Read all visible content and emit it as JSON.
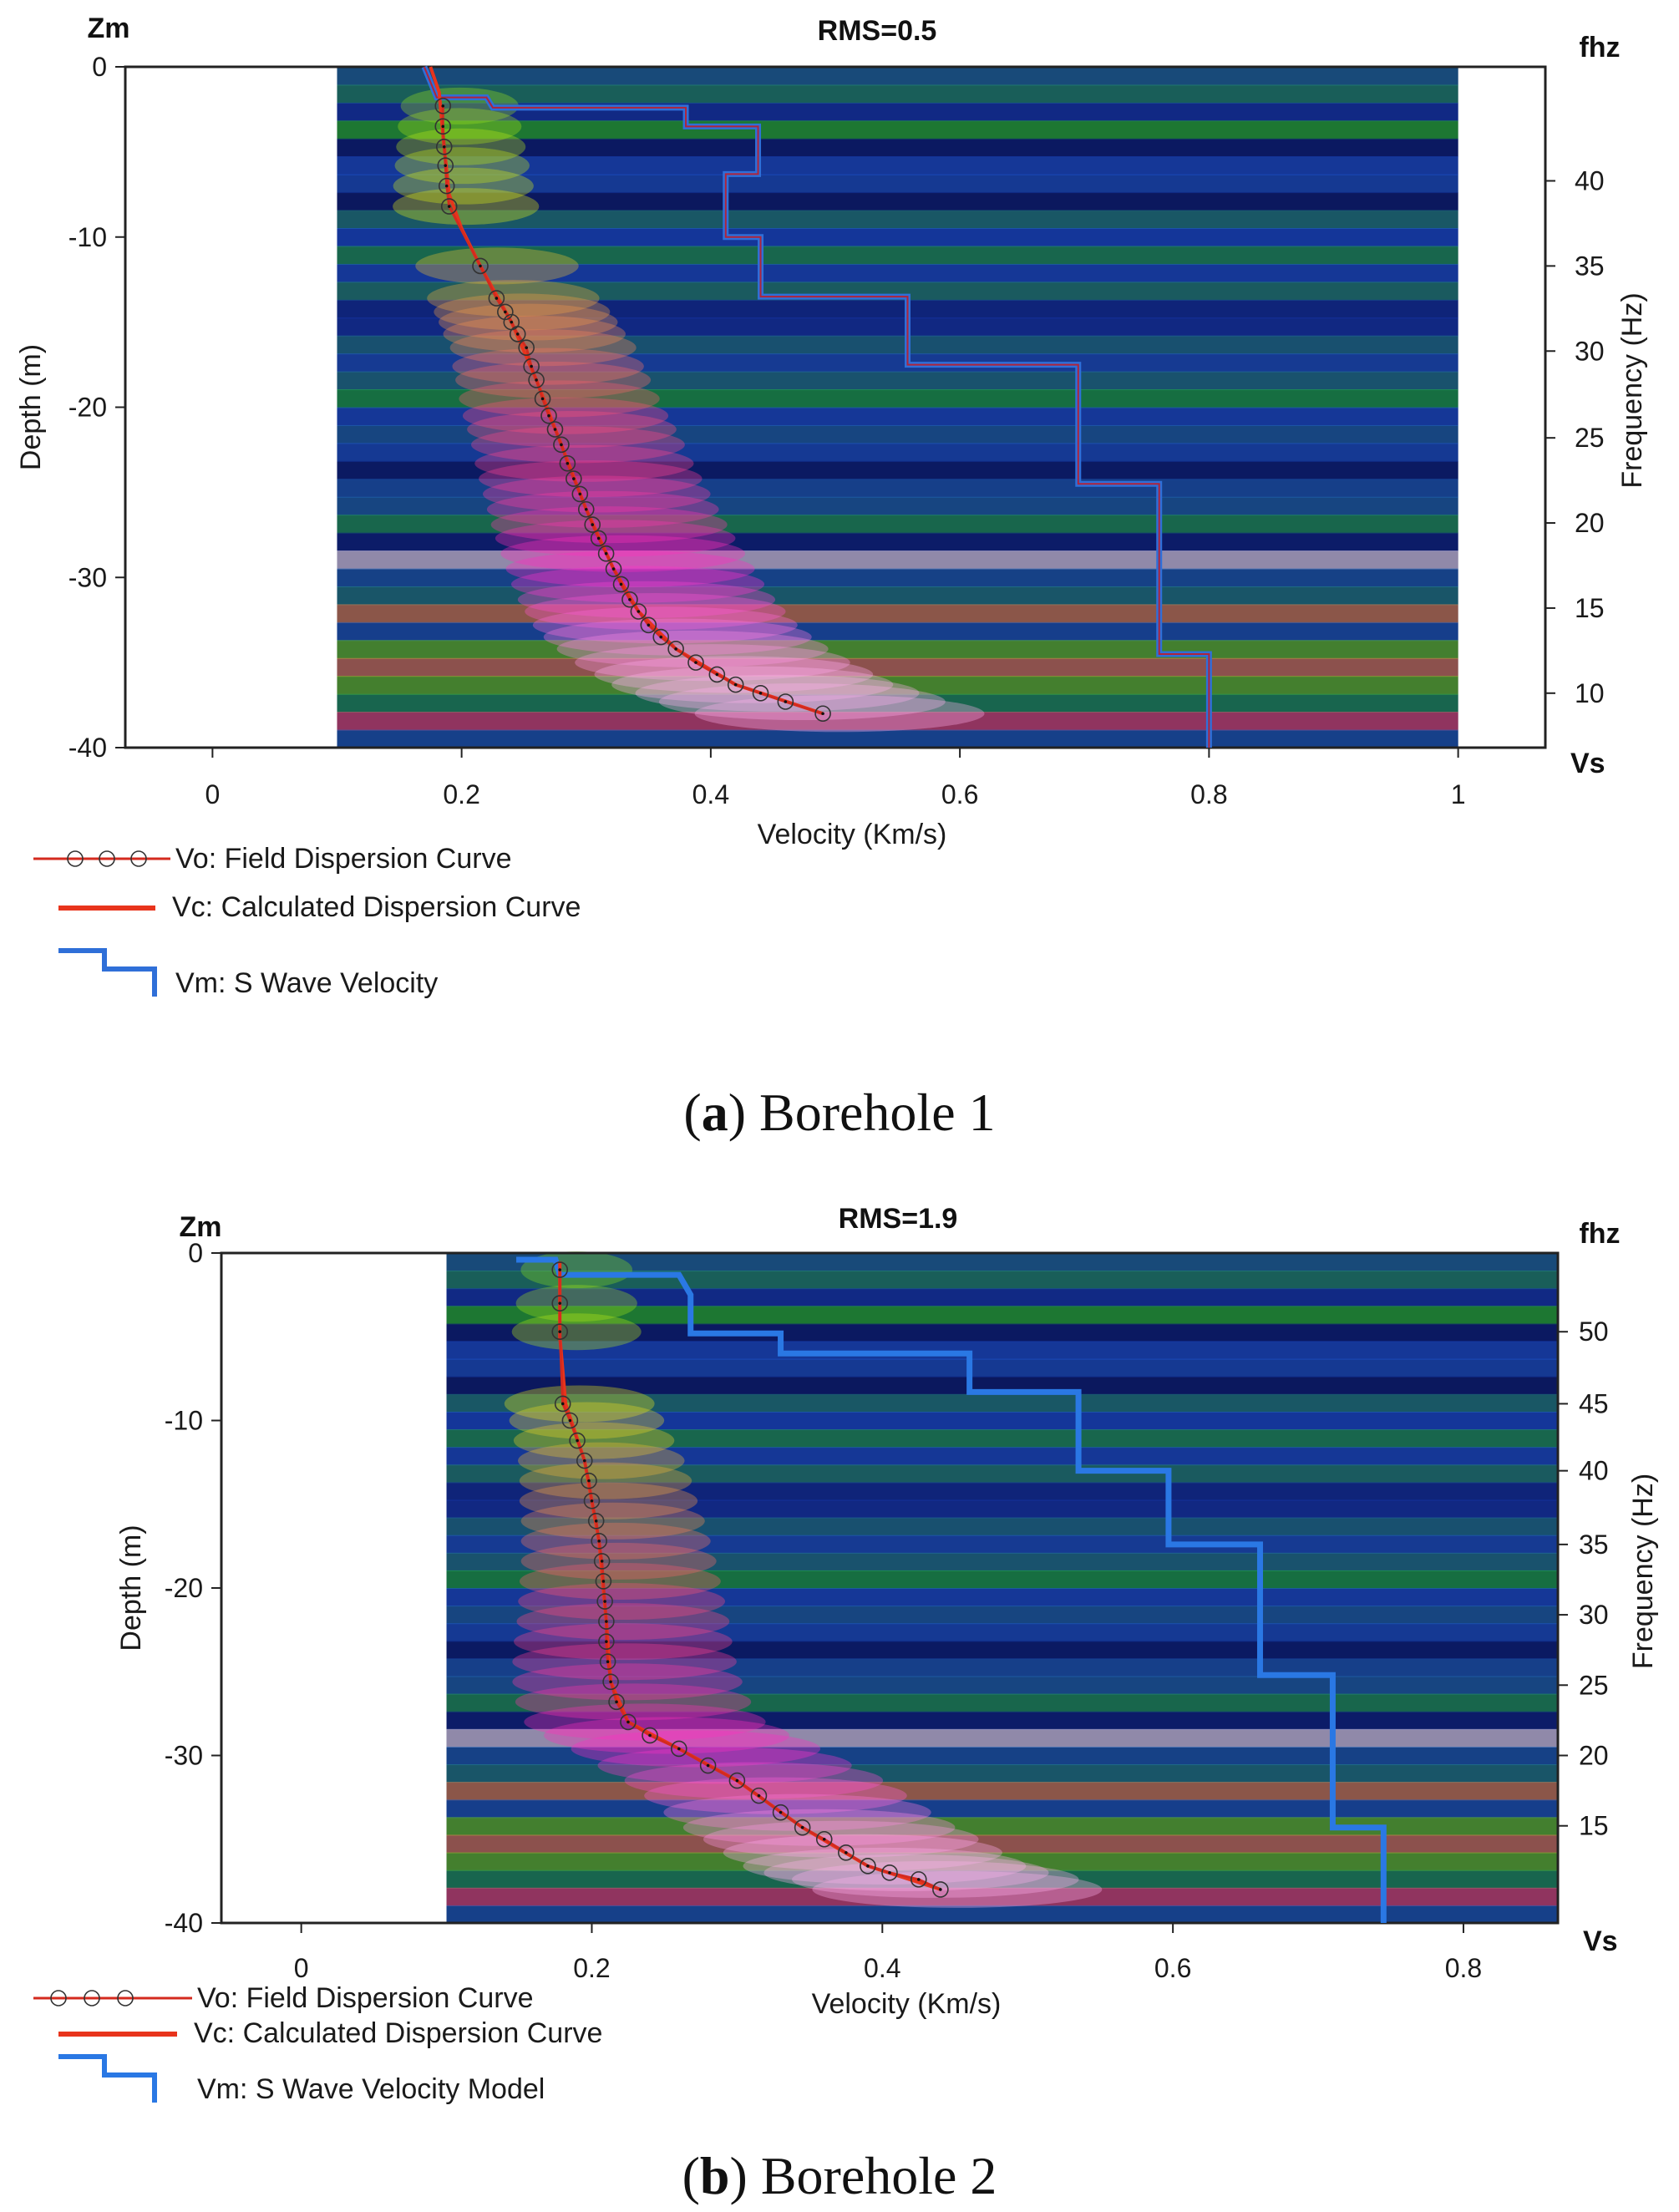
{
  "captions": {
    "a_letter": "a",
    "a_text": " Borehole 1",
    "b_letter": "b",
    "b_text": " Borehole 2"
  },
  "chart_data": [
    {
      "type": "line",
      "panel": "a",
      "title": "RMS=0.5",
      "xlabel": "Velocity (Km/s)",
      "ylabel": "Depth (m)",
      "y2label": "Frequency (Hz)",
      "corner_y": "Zm",
      "corner_y2": "fhz",
      "corner_x": "Vs",
      "xlim": [
        -0.07,
        1.07
      ],
      "ylim": [
        -40,
        0
      ],
      "data_x_range": [
        0.1,
        1.0
      ],
      "x_ticks": [
        0,
        0.2,
        0.4,
        0.6,
        0.8,
        1
      ],
      "x_tick_labels": [
        "0",
        "0.2",
        "0.4",
        "0.6",
        "0.8",
        "1"
      ],
      "y_ticks": [
        0,
        -10,
        -20,
        -30,
        -40
      ],
      "y_tick_labels": [
        "0",
        "-10",
        "-20",
        "-30",
        "-40"
      ],
      "freq_ticks": [
        {
          "freq": 40,
          "depth": -6.7
        },
        {
          "freq": 35,
          "depth": -11.7
        },
        {
          "freq": 30,
          "depth": -16.7
        },
        {
          "freq": 25,
          "depth": -21.8
        },
        {
          "freq": 20,
          "depth": -26.8
        },
        {
          "freq": 15,
          "depth": -31.8
        },
        {
          "freq": 10,
          "depth": -36.8
        }
      ],
      "freq_tick_labels": [
        "40",
        "35",
        "30",
        "25",
        "20",
        "15",
        "10"
      ],
      "series": [
        {
          "name": "Vo: Field Dispersion Curve",
          "color": "#d42a1e",
          "points": [
            [
              0.185,
              -2.3
            ],
            [
              0.185,
              -3.5
            ],
            [
              0.186,
              -4.7
            ],
            [
              0.187,
              -5.8
            ],
            [
              0.188,
              -7.0
            ],
            [
              0.19,
              -8.2
            ],
            [
              0.215,
              -11.7
            ],
            [
              0.228,
              -13.6
            ],
            [
              0.235,
              -14.4
            ],
            [
              0.24,
              -15.0
            ],
            [
              0.245,
              -15.7
            ],
            [
              0.252,
              -16.5
            ],
            [
              0.256,
              -17.6
            ],
            [
              0.26,
              -18.4
            ],
            [
              0.265,
              -19.5
            ],
            [
              0.27,
              -20.5
            ],
            [
              0.275,
              -21.3
            ],
            [
              0.28,
              -22.2
            ],
            [
              0.285,
              -23.3
            ],
            [
              0.29,
              -24.2
            ],
            [
              0.295,
              -25.1
            ],
            [
              0.3,
              -26.0
            ],
            [
              0.305,
              -26.9
            ],
            [
              0.31,
              -27.7
            ],
            [
              0.316,
              -28.6
            ],
            [
              0.322,
              -29.5
            ],
            [
              0.328,
              -30.4
            ],
            [
              0.335,
              -31.3
            ],
            [
              0.342,
              -32.0
            ],
            [
              0.35,
              -32.8
            ],
            [
              0.36,
              -33.5
            ],
            [
              0.372,
              -34.2
            ],
            [
              0.388,
              -35.0
            ],
            [
              0.405,
              -35.7
            ],
            [
              0.42,
              -36.3
            ],
            [
              0.44,
              -36.8
            ],
            [
              0.46,
              -37.3
            ],
            [
              0.49,
              -38.0
            ]
          ]
        },
        {
          "name": "Vc: Calculated Dispersion Curve",
          "color": "#e8341c",
          "points": [
            [
              0.175,
              0.0
            ],
            [
              0.182,
              -1.5
            ],
            [
              0.185,
              -4.0
            ],
            [
              0.19,
              -7.5
            ],
            [
              0.2,
              -9.5
            ],
            [
              0.215,
              -11.7
            ],
            [
              0.24,
              -15.0
            ],
            [
              0.26,
              -18.4
            ],
            [
              0.28,
              -22.2
            ],
            [
              0.3,
              -26.0
            ],
            [
              0.322,
              -29.5
            ],
            [
              0.342,
              -32.0
            ],
            [
              0.372,
              -34.2
            ],
            [
              0.42,
              -36.3
            ],
            [
              0.49,
              -38.0
            ]
          ]
        },
        {
          "name": "Vm: S Wave Velocity",
          "color": "#2f6fd8",
          "steps": [
            [
              0.17,
              0.0
            ],
            [
              0.18,
              -1.8
            ],
            [
              0.22,
              -1.8
            ],
            [
              0.225,
              -2.4
            ],
            [
              0.38,
              -2.4
            ],
            [
              0.38,
              -3.5
            ],
            [
              0.438,
              -3.5
            ],
            [
              0.438,
              -6.3
            ],
            [
              0.412,
              -6.3
            ],
            [
              0.412,
              -10.0
            ],
            [
              0.44,
              -10.0
            ],
            [
              0.44,
              -13.5
            ],
            [
              0.558,
              -13.5
            ],
            [
              0.558,
              -17.5
            ],
            [
              0.695,
              -17.5
            ],
            [
              0.695,
              -24.5
            ],
            [
              0.76,
              -24.5
            ],
            [
              0.76,
              -34.5
            ],
            [
              0.8,
              -34.5
            ],
            [
              0.8,
              -40.0
            ]
          ]
        }
      ],
      "legend": {
        "position": "bottom-left",
        "items": [
          "Vo: Field Dispersion Curve",
          "Vc: Calculated Dispersion Curve",
          "Vm: S Wave Velocity"
        ]
      }
    },
    {
      "type": "line",
      "panel": "b",
      "title": "RMS=1.9",
      "xlabel": "Velocity (Km/s)",
      "ylabel": "Depth (m)",
      "y2label": "Frequency (Hz)",
      "corner_y": "Zm",
      "corner_y2": "fhz",
      "corner_x": "Vs",
      "xlim": [
        -0.055,
        0.865
      ],
      "ylim": [
        -40,
        0
      ],
      "data_x_range": [
        0.1,
        0.865
      ],
      "x_ticks": [
        0,
        0.2,
        0.4,
        0.6,
        0.8
      ],
      "x_tick_labels": [
        "0",
        "0.2",
        "0.4",
        "0.6",
        "0.8"
      ],
      "y_ticks": [
        0,
        -10,
        -20,
        -30,
        -40
      ],
      "y_tick_labels": [
        "0",
        "-10",
        "-20",
        "-30",
        "-40"
      ],
      "freq_ticks": [
        {
          "freq": 50,
          "depth": -4.7
        },
        {
          "freq": 45,
          "depth": -9.0
        },
        {
          "freq": 40,
          "depth": -13.0
        },
        {
          "freq": 35,
          "depth": -17.4
        },
        {
          "freq": 30,
          "depth": -21.6
        },
        {
          "freq": 25,
          "depth": -25.8
        },
        {
          "freq": 20,
          "depth": -30.0
        },
        {
          "freq": 15,
          "depth": -34.2
        }
      ],
      "freq_tick_labels": [
        "50",
        "45",
        "40",
        "35",
        "30",
        "25",
        "20",
        "15"
      ],
      "series": [
        {
          "name": "Vo: Field Dispersion Curve",
          "color": "#d42a1e",
          "points": [
            [
              0.178,
              -1.0
            ],
            [
              0.178,
              -3.0
            ],
            [
              0.178,
              -4.7
            ],
            [
              0.18,
              -9.0
            ],
            [
              0.185,
              -10.0
            ],
            [
              0.19,
              -11.2
            ],
            [
              0.195,
              -12.4
            ],
            [
              0.198,
              -13.6
            ],
            [
              0.2,
              -14.8
            ],
            [
              0.203,
              -16.0
            ],
            [
              0.205,
              -17.2
            ],
            [
              0.207,
              -18.4
            ],
            [
              0.208,
              -19.6
            ],
            [
              0.209,
              -20.8
            ],
            [
              0.21,
              -22.0
            ],
            [
              0.21,
              -23.2
            ],
            [
              0.211,
              -24.4
            ],
            [
              0.213,
              -25.6
            ],
            [
              0.217,
              -26.8
            ],
            [
              0.225,
              -28.0
            ],
            [
              0.24,
              -28.8
            ],
            [
              0.26,
              -29.6
            ],
            [
              0.28,
              -30.6
            ],
            [
              0.3,
              -31.5
            ],
            [
              0.315,
              -32.4
            ],
            [
              0.33,
              -33.4
            ],
            [
              0.345,
              -34.3
            ],
            [
              0.36,
              -35.0
            ],
            [
              0.375,
              -35.8
            ],
            [
              0.39,
              -36.6
            ],
            [
              0.405,
              -37.0
            ],
            [
              0.425,
              -37.4
            ],
            [
              0.44,
              -38.0
            ]
          ]
        },
        {
          "name": "Vc: Calculated Dispersion Curve",
          "color": "#e8341c",
          "points": [
            [
              0.178,
              -0.5
            ],
            [
              0.178,
              -5.0
            ],
            [
              0.182,
              -9.0
            ],
            [
              0.195,
              -12.4
            ],
            [
              0.205,
              -17.2
            ],
            [
              0.21,
              -22.0
            ],
            [
              0.213,
              -25.6
            ],
            [
              0.225,
              -28.0
            ],
            [
              0.26,
              -29.6
            ],
            [
              0.3,
              -31.5
            ],
            [
              0.345,
              -34.3
            ],
            [
              0.39,
              -36.6
            ],
            [
              0.44,
              -38.0
            ]
          ]
        },
        {
          "name": "Vm: S Wave Velocity Model",
          "color": "#2a78e4",
          "steps": [
            [
              0.148,
              -0.4
            ],
            [
              0.175,
              -0.4
            ],
            [
              0.178,
              -1.3
            ],
            [
              0.26,
              -1.3
            ],
            [
              0.268,
              -2.5
            ],
            [
              0.268,
              -4.8
            ],
            [
              0.33,
              -4.8
            ],
            [
              0.33,
              -6.0
            ],
            [
              0.46,
              -6.0
            ],
            [
              0.46,
              -8.3
            ],
            [
              0.535,
              -8.3
            ],
            [
              0.535,
              -13.0
            ],
            [
              0.597,
              -13.0
            ],
            [
              0.597,
              -17.4
            ],
            [
              0.66,
              -17.4
            ],
            [
              0.66,
              -25.2
            ],
            [
              0.71,
              -25.2
            ],
            [
              0.71,
              -34.3
            ],
            [
              0.745,
              -34.3
            ],
            [
              0.745,
              -40.0
            ]
          ]
        }
      ],
      "legend": {
        "position": "bottom-left",
        "items": [
          "Vo: Field Dispersion Curve",
          "Vc: Calculated Dispersion Curve",
          "Vm: S Wave Velocity Model"
        ]
      }
    }
  ]
}
